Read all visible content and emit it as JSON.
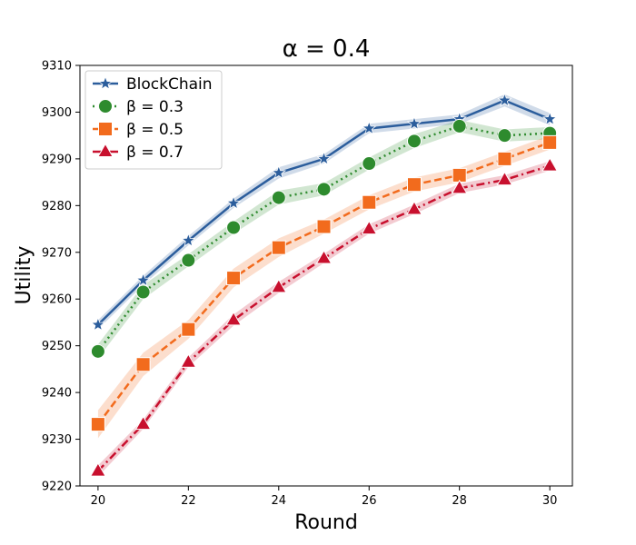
{
  "chart_data": {
    "type": "line",
    "title": "α = 0.4",
    "xlabel": "Round",
    "ylabel": "Utility",
    "xlim": [
      19.6,
      30.5
    ],
    "ylim": [
      9220,
      9310
    ],
    "xticks": [
      20,
      22,
      24,
      26,
      28,
      30
    ],
    "yticks": [
      9220,
      9230,
      9240,
      9250,
      9260,
      9270,
      9280,
      9290,
      9300,
      9310
    ],
    "grid": false,
    "legend_position": "top-left",
    "x": [
      20,
      21,
      22,
      23,
      24,
      25,
      26,
      27,
      28,
      29,
      30
    ],
    "series": [
      {
        "name": "BlockChain",
        "color": "#2b5d9c",
        "marker": "star",
        "line_style": "solid",
        "values": [
          9254.5,
          9264.0,
          9272.5,
          9280.5,
          9287.0,
          9290.0,
          9296.5,
          9297.5,
          9298.5,
          9302.5,
          9298.5
        ],
        "band": [
          1.0,
          1.0,
          1.0,
          1.0,
          1.2,
          1.0,
          1.0,
          1.0,
          1.0,
          1.3,
          1.3
        ]
      },
      {
        "name": "β = 0.3",
        "color": "#2e8b2e",
        "marker": "circle",
        "line_style": "dotted",
        "values": [
          9248.8,
          9261.5,
          9268.3,
          9275.3,
          9281.7,
          9283.5,
          9289.0,
          9293.8,
          9297.0,
          9295.0,
          9295.5
        ],
        "band": [
          1.5,
          1.5,
          1.3,
          1.3,
          1.5,
          1.3,
          1.3,
          1.5,
          1.3,
          1.3,
          1.3
        ]
      },
      {
        "name": "β = 0.5",
        "color": "#f26b1d",
        "marker": "square",
        "line_style": "dashed",
        "values": [
          9233.2,
          9246.0,
          9253.5,
          9264.5,
          9271.0,
          9275.5,
          9280.7,
          9284.5,
          9286.5,
          9290.0,
          9293.5
        ],
        "band": [
          3.0,
          2.5,
          2.0,
          2.0,
          2.0,
          1.5,
          1.5,
          1.5,
          1.5,
          1.5,
          1.5
        ]
      },
      {
        "name": "β = 0.7",
        "color": "#c8102e",
        "marker": "triangle",
        "line_style": "dashdot",
        "values": [
          9223.2,
          9233.2,
          9246.5,
          9255.5,
          9262.5,
          9268.7,
          9275.0,
          9279.2,
          9283.7,
          9285.5,
          9288.5
        ],
        "band": [
          1.2,
          1.0,
          1.0,
          1.2,
          1.2,
          1.0,
          1.0,
          1.0,
          1.0,
          1.0,
          1.0
        ]
      }
    ]
  }
}
